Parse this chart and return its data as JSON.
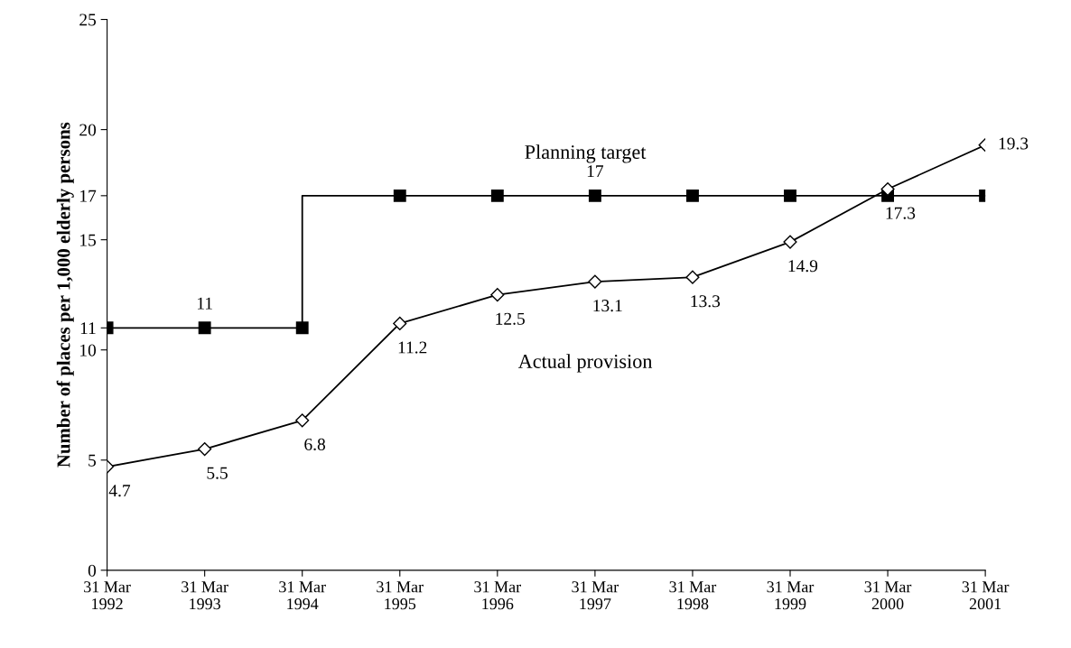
{
  "chart_data": {
    "type": "line",
    "categories": [
      "31 Mar\n1992",
      "31 Mar\n1993",
      "31 Mar\n1994",
      "31 Mar\n1995",
      "31 Mar\n1996",
      "31 Mar\n1997",
      "31 Mar\n1998",
      "31 Mar\n1999",
      "31 Mar\n2000",
      "31 Mar\n2001"
    ],
    "ylabel": "Number of places per 1,000 elderly persons",
    "ylim": [
      0,
      25
    ],
    "yticks": [
      0,
      5,
      10,
      11,
      15,
      17,
      20,
      25
    ],
    "grid": false,
    "legend": false,
    "series": [
      {
        "name": "Planning target",
        "type": "step",
        "color": "#000000",
        "marker": "square",
        "values": [
          11,
          11,
          11,
          17,
          17,
          17,
          17,
          17,
          17,
          17
        ]
      },
      {
        "name": "Actual provision",
        "color": "#000000",
        "marker": "diamond",
        "values": [
          4.7,
          5.5,
          6.8,
          11.2,
          12.5,
          13.1,
          13.3,
          14.9,
          17.3,
          19.3
        ],
        "value_labels": [
          "4.7",
          "5.5",
          "6.8",
          "11.2",
          "12.5",
          "13.1",
          "13.3",
          "14.9",
          "17.3",
          "19.3"
        ]
      }
    ],
    "annotations": [
      {
        "text": "11",
        "x": "31 Mar\n1993",
        "y": 11
      },
      {
        "text": "17",
        "x": "31 Mar\n1997",
        "y": 17
      }
    ]
  }
}
